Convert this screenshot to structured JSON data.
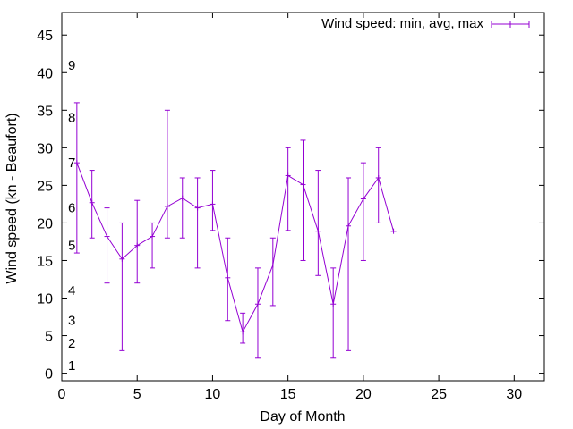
{
  "chart_data": {
    "type": "line",
    "xlabel": "Day of Month",
    "ylabel": "Wind speed (kn - Beaufort)",
    "xlim": [
      0,
      32
    ],
    "ylim": [
      -1,
      48
    ],
    "xticks": [
      0,
      5,
      10,
      15,
      20,
      25,
      30
    ],
    "yticks": [
      0,
      5,
      10,
      15,
      20,
      25,
      30,
      35,
      40,
      45
    ],
    "grid": false,
    "legend_position": "top-right",
    "series": [
      {
        "name": "Wind speed: min, avg, max",
        "color": "#9400d3",
        "style": "yerrorlines",
        "x": [
          1,
          2,
          3,
          4,
          5,
          6,
          7,
          8,
          9,
          10,
          11,
          12,
          13,
          14,
          15,
          16,
          17,
          18,
          19,
          20,
          21,
          22
        ],
        "y": [
          28,
          22.7,
          18.2,
          15.2,
          17,
          18.2,
          22.2,
          23.3,
          22,
          22.5,
          12.7,
          5.5,
          9.2,
          14.4,
          26.3,
          25.1,
          18.9,
          9.2,
          19.6,
          23.2,
          26,
          18.9
        ],
        "min": [
          16,
          18,
          12,
          3,
          12,
          14,
          18,
          18,
          14,
          19,
          7,
          4,
          2,
          9,
          19,
          15,
          13,
          2,
          3,
          15,
          20,
          18.9
        ],
        "max": [
          36,
          27,
          22,
          20,
          23,
          20,
          35,
          26,
          26,
          27,
          18,
          8,
          14,
          18,
          30,
          31,
          27,
          14,
          26,
          28,
          30,
          18.9
        ]
      }
    ],
    "beaufort_labels": [
      {
        "label": "1",
        "value": 1
      },
      {
        "label": "2",
        "value": 4
      },
      {
        "label": "3",
        "value": 7
      },
      {
        "label": "4",
        "value": 11
      },
      {
        "label": "5",
        "value": 17
      },
      {
        "label": "6",
        "value": 22
      },
      {
        "label": "7",
        "value": 28
      },
      {
        "label": "8",
        "value": 34
      },
      {
        "label": "9",
        "value": 41
      }
    ]
  }
}
